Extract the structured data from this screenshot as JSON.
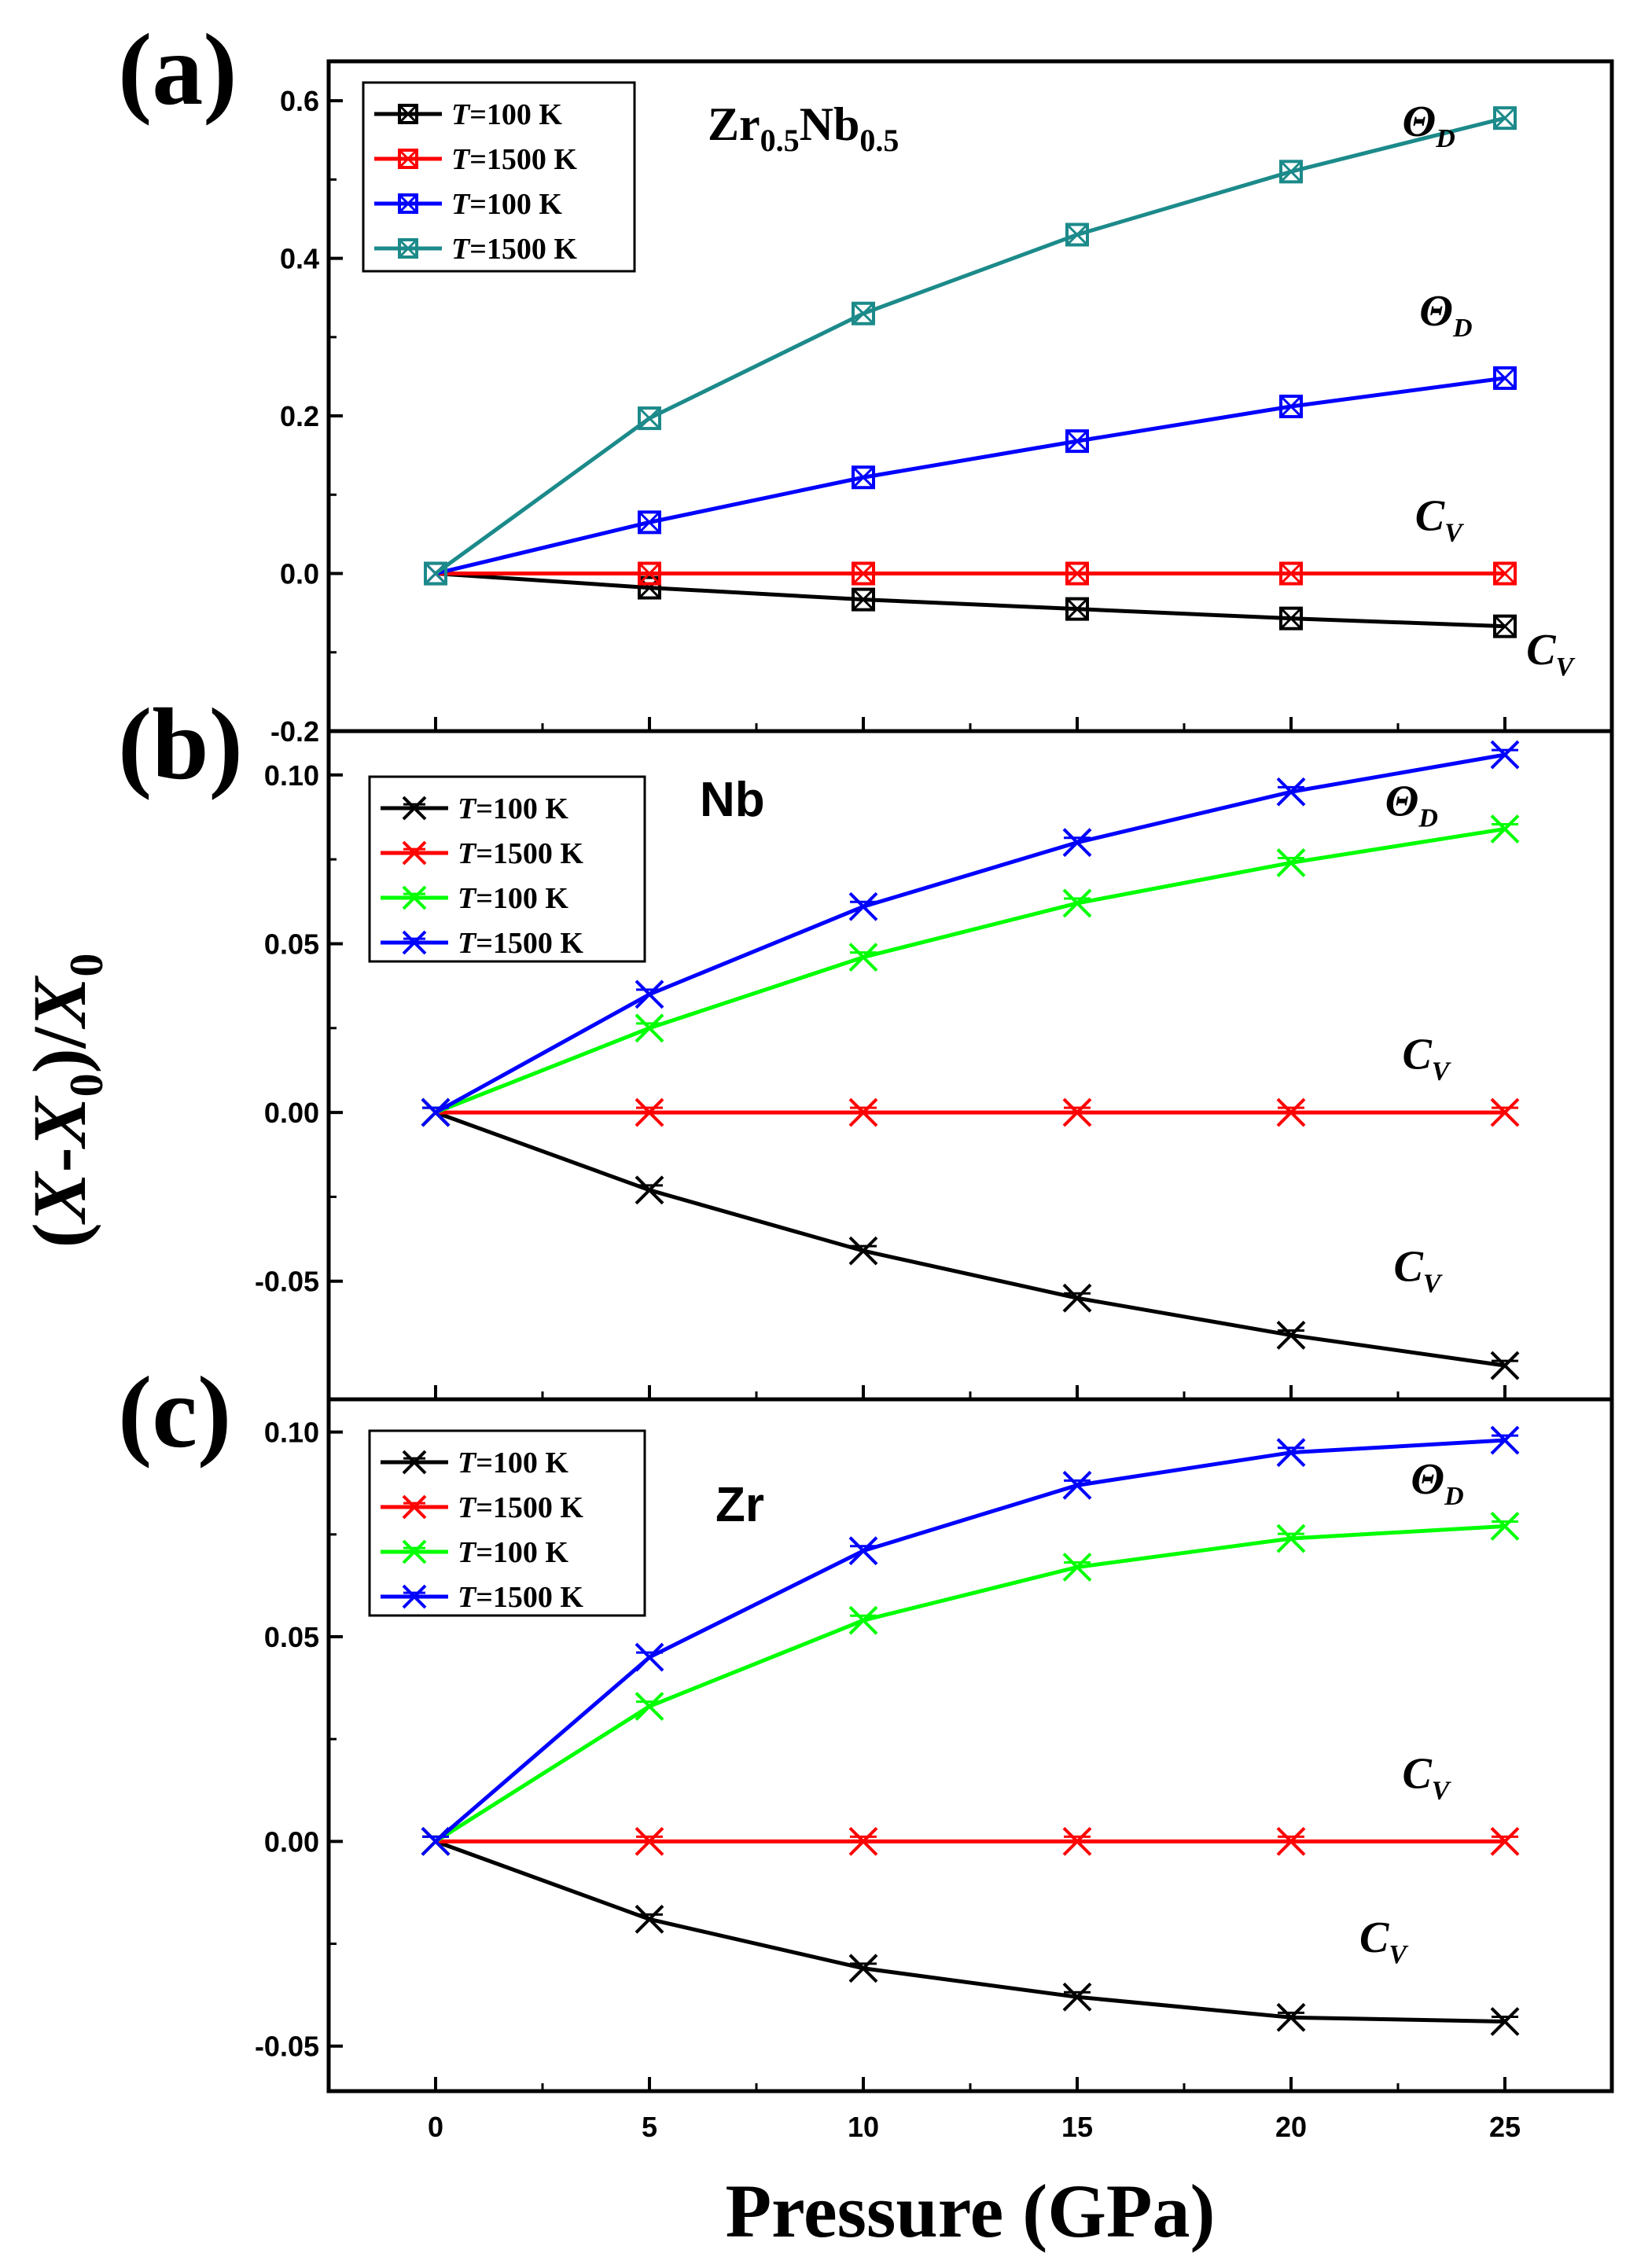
{
  "figure": {
    "xlabel": "Pressure (GPa)",
    "ylabel": {
      "open": "(",
      "X": "X",
      "dash": "-",
      "X0": "X",
      "sub0": "0",
      "close": ")/",
      "X0b": "X",
      "sub0b": "0"
    }
  },
  "chart_data": [
    {
      "type": "line",
      "panel_label": "(a)",
      "sample": {
        "base1": "Zr",
        "sub1": "0.5",
        "base2": "Nb",
        "sub2": "0.5"
      },
      "x": [
        0,
        5,
        10,
        15,
        20,
        25
      ],
      "xlim": [
        -2.5,
        27.5
      ],
      "xticks": [
        0,
        5,
        10,
        15,
        20,
        25
      ],
      "ylim": [
        -0.2,
        0.65
      ],
      "yticks": [
        -0.2,
        0.0,
        0.2,
        0.4,
        0.6
      ],
      "ytick_labels": [
        "-0.2",
        "0.0",
        "0.2",
        "0.4",
        "0.6"
      ],
      "marker": "boxcross",
      "series": [
        {
          "name": "T=100 K",
          "color": "#000000",
          "values": [
            0,
            -0.018,
            -0.033,
            -0.045,
            -0.057,
            -0.067
          ]
        },
        {
          "name": "T=1500 K",
          "color": "#ff0000",
          "values": [
            0,
            0,
            0,
            0,
            0,
            0
          ]
        },
        {
          "name": "T=100 K",
          "color": "#0000ff",
          "values": [
            0,
            0.065,
            0.122,
            0.168,
            0.212,
            0.248
          ]
        },
        {
          "name": "T=1500 K",
          "color": "#1c8a8a",
          "values": [
            0,
            0.197,
            0.33,
            0.43,
            0.51,
            0.578
          ]
        }
      ],
      "annotations": [
        {
          "base": "Θ",
          "sub": "D",
          "x": 22.6,
          "y": 0.555
        },
        {
          "base": "Θ",
          "sub": "D",
          "x": 23.0,
          "y": 0.315
        },
        {
          "base": "C",
          "sub": "V",
          "x": 22.9,
          "y": 0.055
        },
        {
          "base": "C",
          "sub": "V",
          "x": 25.5,
          "y": -0.115
        }
      ]
    },
    {
      "type": "line",
      "panel_label": "(b)",
      "sample": {
        "text": "Nb"
      },
      "x": [
        0,
        5,
        10,
        15,
        20,
        25
      ],
      "xlim": [
        -2.5,
        27.5
      ],
      "xticks": [
        0,
        5,
        10,
        15,
        20,
        25
      ],
      "ylim": [
        -0.085,
        0.113
      ],
      "yticks": [
        -0.05,
        0.0,
        0.05,
        0.1
      ],
      "ytick_labels": [
        "-0.05",
        "0.00",
        "0.05",
        "0.10"
      ],
      "marker": "xcross",
      "series": [
        {
          "name": "T=100 K",
          "color": "#000000",
          "values": [
            0,
            -0.023,
            -0.041,
            -0.055,
            -0.066,
            -0.075
          ]
        },
        {
          "name": "T=1500 K",
          "color": "#ff0000",
          "values": [
            0,
            0,
            0,
            0,
            0,
            0
          ]
        },
        {
          "name": "T=100 K",
          "color": "#00ff00",
          "values": [
            0,
            0.025,
            0.046,
            0.062,
            0.074,
            0.084
          ]
        },
        {
          "name": "T=1500 K",
          "color": "#0000ff",
          "values": [
            0,
            0.035,
            0.061,
            0.08,
            0.095,
            0.106
          ]
        }
      ],
      "annotations": [
        {
          "base": "Θ",
          "sub": "D",
          "x": 22.2,
          "y": 0.088
        },
        {
          "base": "C",
          "sub": "V",
          "x": 22.6,
          "y": 0.013
        },
        {
          "base": "C",
          "sub": "V",
          "x": 22.4,
          "y": -0.05
        }
      ]
    },
    {
      "type": "line",
      "panel_label": "(c)",
      "sample": {
        "text": "Zr"
      },
      "x": [
        0,
        5,
        10,
        15,
        20,
        25
      ],
      "xlim": [
        -2.5,
        27.5
      ],
      "xticks": [
        0,
        5,
        10,
        15,
        20,
        25
      ],
      "ylim": [
        -0.061,
        0.108
      ],
      "yticks": [
        -0.05,
        0.0,
        0.05,
        0.1
      ],
      "ytick_labels": [
        "-0.05",
        "0.00",
        "0.05",
        "0.10"
      ],
      "marker": "xcross",
      "series": [
        {
          "name": "T=100 K",
          "color": "#000000",
          "values": [
            0,
            -0.019,
            -0.031,
            -0.038,
            -0.043,
            -0.044
          ]
        },
        {
          "name": "T=1500 K",
          "color": "#ff0000",
          "values": [
            0,
            0,
            0,
            0,
            0,
            0
          ]
        },
        {
          "name": "T=100 K",
          "color": "#00ff00",
          "values": [
            0,
            0.033,
            0.054,
            0.067,
            0.074,
            0.077
          ]
        },
        {
          "name": "T=1500 K",
          "color": "#0000ff",
          "values": [
            0,
            0.045,
            0.071,
            0.087,
            0.095,
            0.098
          ]
        }
      ],
      "annotations": [
        {
          "base": "Θ",
          "sub": "D",
          "x": 22.8,
          "y": 0.085
        },
        {
          "base": "C",
          "sub": "V",
          "x": 22.6,
          "y": 0.013
        },
        {
          "base": "C",
          "sub": "V",
          "x": 21.6,
          "y": -0.027
        }
      ]
    }
  ]
}
